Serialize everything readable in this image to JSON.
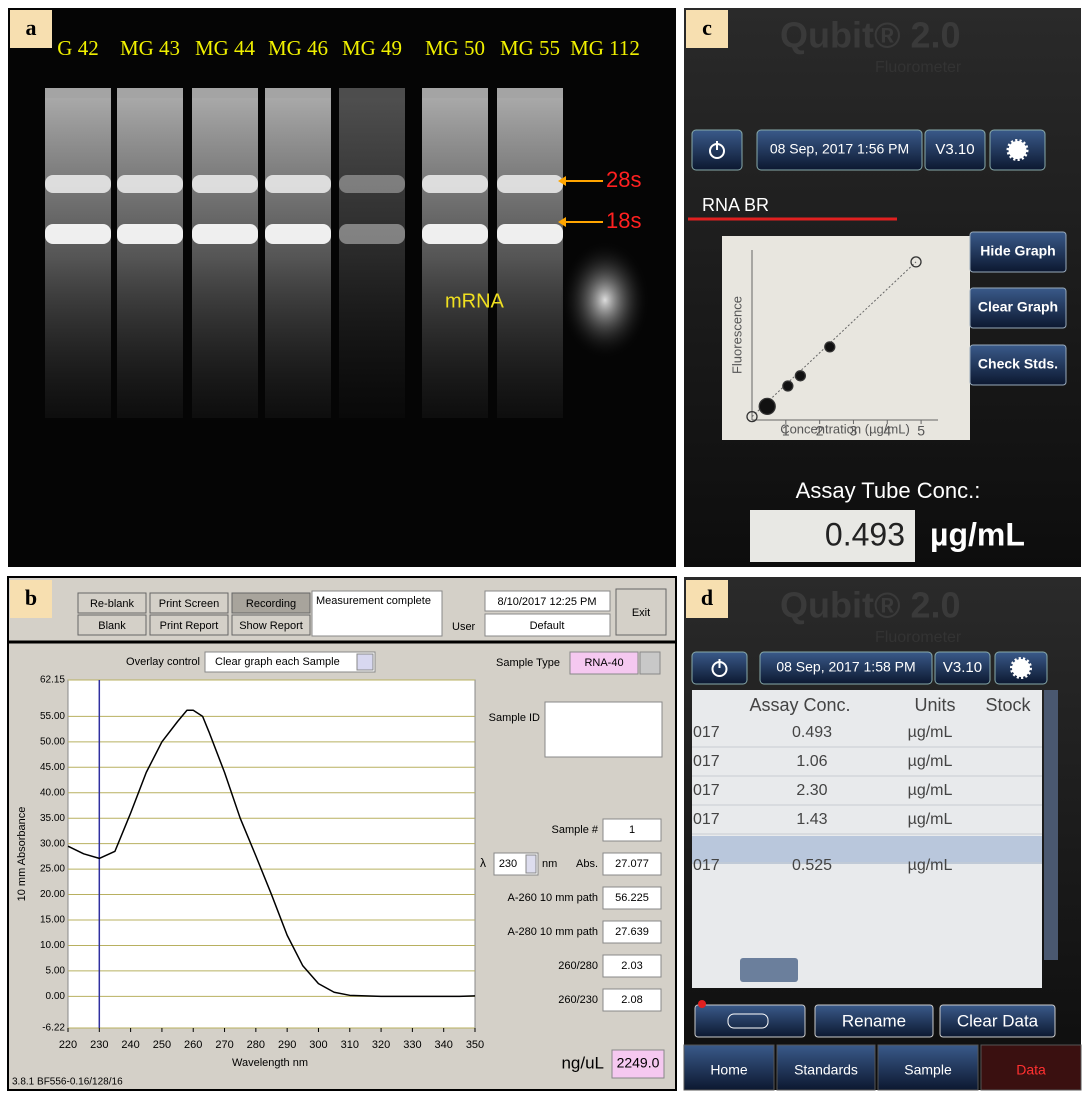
{
  "panel_a": {
    "label": "a",
    "lanes": [
      "G 42",
      "MG 43",
      "MG 44",
      "MG 46",
      "MG 49",
      "MG 50",
      "MG 55",
      "MG 112"
    ],
    "annotations": [
      "28s",
      "18s",
      "mRNA"
    ]
  },
  "panel_b": {
    "label": "b",
    "buttons": [
      "Re-blank",
      "Print Screen",
      "Recording",
      "Blank",
      "Print Report",
      "Show Report"
    ],
    "status": "Measurement complete",
    "datetime": "8/10/2017 12:25 PM",
    "user_label": "User",
    "user": "Default",
    "exit": "Exit",
    "overlay_label": "Overlay control",
    "overlay": "Clear graph each Sample",
    "sample_type_label": "Sample Type",
    "sample_type": "RNA-40",
    "sample_id_label": "Sample ID",
    "sample_no_label": "Sample #",
    "sample_no": "1",
    "lambda_symbol": "λ",
    "lambda": 230,
    "lambda_unit": "nm",
    "readouts": [
      {
        "label": "Abs.",
        "value": "27.077"
      },
      {
        "label": "A-260 10 mm path",
        "value": "56.225"
      },
      {
        "label": "A-280 10 mm path",
        "value": "27.639"
      },
      {
        "label": "260/280",
        "value": "2.03"
      },
      {
        "label": "260/230",
        "value": "2.08"
      }
    ],
    "conc_label": "ng/uL",
    "conc": "2249.0",
    "footer": "3.8.1 BF556-0.16/128/16",
    "chart": {
      "type": "line",
      "x_label": "Wavelength nm",
      "y_label": "10 mm Absorbance",
      "x": [
        220,
        225,
        230,
        235,
        240,
        245,
        250,
        255,
        258,
        260,
        263,
        265,
        270,
        275,
        280,
        285,
        290,
        295,
        300,
        305,
        310,
        320,
        330,
        340,
        345,
        350
      ],
      "values": [
        29.5,
        28,
        27.1,
        28.5,
        36,
        44,
        50,
        54,
        56.2,
        56.2,
        55,
        52,
        44,
        35,
        27.6,
        20,
        12,
        6,
        2.5,
        0.8,
        0.2,
        0,
        0,
        0,
        0,
        0.1
      ],
      "color": "#000000",
      "xlim": [
        220,
        350
      ],
      "ylim": [
        -6.22,
        62.15
      ],
      "xticks": [
        220,
        230,
        240,
        250,
        260,
        270,
        280,
        290,
        300,
        310,
        320,
        330,
        340,
        350
      ],
      "yticks": [
        62.15,
        {
          "value": 55,
          "label": "55.00"
        },
        {
          "value": 50,
          "label": "50.00"
        },
        {
          "value": 45,
          "label": "45.00"
        },
        {
          "value": 40,
          "label": "40.00"
        },
        {
          "value": 35,
          "label": "35.00"
        },
        {
          "value": 30,
          "label": "30.00"
        },
        {
          "value": 25,
          "label": "25.00"
        },
        {
          "value": 20,
          "label": "20.00"
        },
        {
          "value": 15,
          "label": "15.00"
        },
        {
          "value": 10,
          "label": "10.00"
        },
        {
          "value": 5,
          "label": "5.00"
        },
        {
          "value": 0,
          "label": "0.00"
        },
        -6.22
      ],
      "grid": true
    }
  },
  "panel_c": {
    "label": "c",
    "brand": "Qubit® 2.0",
    "subbrand": "Fluorometer",
    "datetime": "08 Sep, 2017  1:56 PM",
    "version": "V3.10",
    "assay": "RNA BR",
    "buttons": [
      "Hide Graph",
      "Clear Graph",
      "Check Stds."
    ],
    "result_label": "Assay Tube Conc.:",
    "result": "0.493",
    "unit": "µg/mL",
    "chart": {
      "type": "scatter",
      "x_label": "Concentration (µg/mL)",
      "y_label": "Fluorescence",
      "x": [
        0,
        0.45,
        1.06,
        1.43,
        2.3,
        4.85
      ],
      "values": [
        0.02,
        0.08,
        0.2,
        0.26,
        0.43,
        0.93
      ],
      "markers": [
        "open",
        "filled",
        "filled",
        "filled",
        "filled",
        "open"
      ],
      "xlim": [
        0,
        5.5
      ],
      "ylim": [
        0,
        1
      ],
      "xticks": [
        1,
        2,
        3,
        4,
        5
      ]
    }
  },
  "panel_d": {
    "label": "d",
    "brand": "Qubit® 2.0",
    "subbrand": "Fluorometer",
    "datetime": "08 Sep, 2017  1:58 PM",
    "version": "V3.10",
    "table": {
      "headers": [
        "Assay Conc.",
        "Units",
        "Stock"
      ],
      "rows": [
        [
          "017",
          "0.493",
          "µg/mL"
        ],
        [
          "017",
          "1.06",
          "µg/mL"
        ],
        [
          "017",
          "2.30",
          "µg/mL"
        ],
        [
          "017",
          "1.43",
          "µg/mL"
        ],
        [
          "017",
          "0.525",
          "µg/mL"
        ]
      ]
    },
    "buttons": [
      "Rename",
      "Clear Data"
    ],
    "tabs": [
      "Home",
      "Standards",
      "Sample",
      "Data"
    ]
  }
}
